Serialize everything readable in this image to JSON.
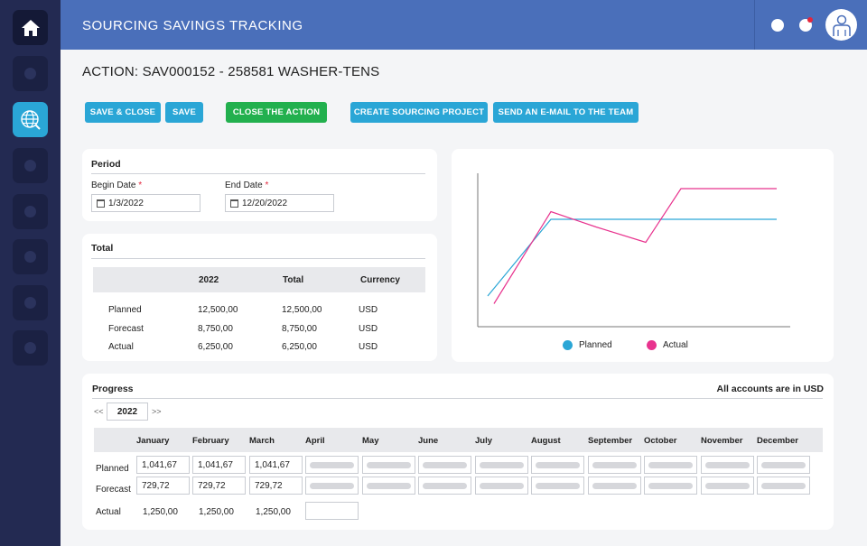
{
  "app": {
    "title": "SOURCING SAVINGS TRACKING"
  },
  "colors": {
    "accent": "#2aa6d6",
    "green": "#22b04e",
    "header": "#4a6fba",
    "sidebar": "#232a52",
    "planned": "#2aa6d6",
    "actual": "#e8338e"
  },
  "sidebar": {
    "items": [
      {
        "icon": "home-icon"
      },
      {
        "icon": "circle-icon"
      },
      {
        "icon": "globe-search-icon"
      },
      {
        "icon": "circle-icon"
      },
      {
        "icon": "circle-icon"
      },
      {
        "icon": "circle-icon"
      },
      {
        "icon": "circle-icon"
      },
      {
        "icon": "circle-icon"
      }
    ]
  },
  "action": {
    "title": "ACTION: SAV000152 - 258581 WASHER-TENS"
  },
  "toolbar": {
    "save_close": "SAVE & CLOSE",
    "save": "SAVE",
    "close_action": "CLOSE THE ACTION",
    "create_project": "CREATE SOURCING PROJECT",
    "send_email": "SEND AN E-MAIL TO THE TEAM"
  },
  "period": {
    "title": "Period",
    "begin_label": "Begin Date",
    "end_label": "End Date",
    "required_mark": "*",
    "begin_value": "1/3/2022",
    "end_value": "12/20/2022"
  },
  "total": {
    "title": "Total",
    "headers": [
      "2022",
      "Total",
      "Currency"
    ],
    "rows": [
      {
        "label": "Planned",
        "year": "12,500,00",
        "total": "12,500,00",
        "currency": "USD"
      },
      {
        "label": "Forecast",
        "year": "8,750,00",
        "total": "8,750,00",
        "currency": "USD"
      },
      {
        "label": "Actual",
        "year": "6,250,00",
        "total": "6,250,00",
        "currency": "USD"
      }
    ]
  },
  "chart_data": {
    "type": "line",
    "x": [
      0,
      1,
      2,
      3,
      4,
      5
    ],
    "series": [
      {
        "name": "Planned",
        "values": [
          2,
          7,
          7,
          7,
          7,
          7
        ]
      },
      {
        "name": "Actual",
        "values": [
          1.5,
          7.5,
          6.5,
          5.5,
          9,
          9
        ]
      }
    ],
    "ylim": [
      0,
      10
    ],
    "grid": false,
    "legend": "bottom"
  },
  "progress": {
    "title": "Progress",
    "note": "All accounts are in USD",
    "year": "2022",
    "prev": "<<",
    "next": ">>",
    "months": [
      "January",
      "February",
      "March",
      "April",
      "May",
      "June",
      "July",
      "August",
      "September",
      "October",
      "November",
      "December"
    ],
    "rows": [
      {
        "label": "Planned",
        "values": [
          "1,041,67",
          "1,041,67",
          "1,041,67"
        ]
      },
      {
        "label": "Forecast",
        "values": [
          "729,72",
          "729,72",
          "729,72"
        ]
      },
      {
        "label": "Actual",
        "values": [
          "1,250,00",
          "1,250,00",
          "1,250,00"
        ]
      }
    ]
  }
}
